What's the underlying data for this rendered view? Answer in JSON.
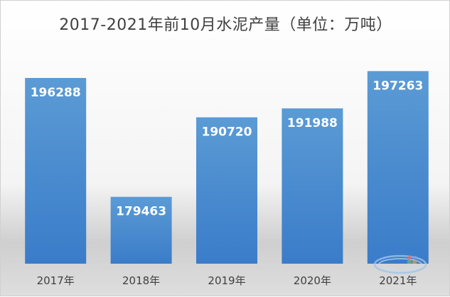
{
  "chart_data": {
    "type": "bar",
    "title": "2017-2021年前10月水泥产量（单位：万吨）",
    "categories": [
      "2017年",
      "2018年",
      "2019年",
      "2020年",
      "2021年"
    ],
    "values": [
      196288,
      179463,
      190720,
      191988,
      197263
    ],
    "value_labels": [
      "196288",
      "179463",
      "190720",
      "191988",
      "197263"
    ],
    "xlabel": "",
    "ylabel": "",
    "ylim": [
      170000,
      200000
    ],
    "grid": false,
    "legend": "none",
    "colors": {
      "bar_top": "#5b9bd5",
      "bar_bottom": "#3a7cc9",
      "data_label": "#ffffff",
      "axis_label": "#404040"
    }
  }
}
